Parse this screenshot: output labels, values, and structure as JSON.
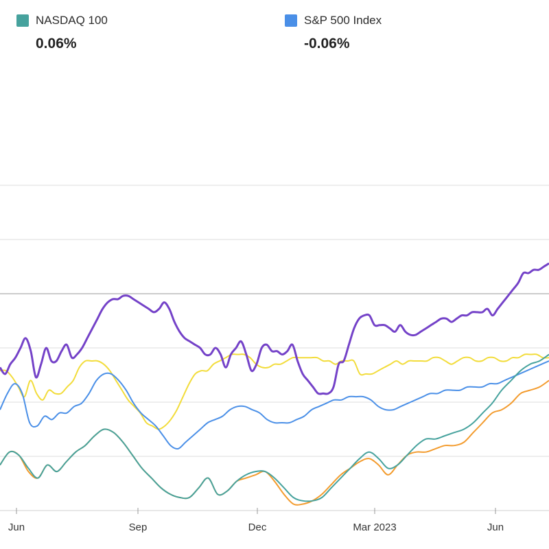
{
  "legend": [
    {
      "name": "NASDAQ 100",
      "value": "0.06%",
      "color": "#46a29d"
    },
    {
      "name": "S&P 500 Index",
      "value": "-0.06%",
      "color": "#4a8fe7"
    }
  ],
  "chart_data": {
    "type": "line",
    "title": "",
    "xlabel": "",
    "ylabel": "",
    "x_tick_labels": [
      "Jun",
      "Sep",
      "Dec",
      "Mar 2023",
      "Jun"
    ],
    "grid": true,
    "series": [
      {
        "color": "#7442c8",
        "values": [
          0.44,
          0.42,
          0.45,
          0.47,
          0.5,
          0.53,
          0.49,
          0.41,
          0.45,
          0.5,
          0.46,
          0.46,
          0.49,
          0.51,
          0.47,
          0.48,
          0.5,
          0.53,
          0.56,
          0.59,
          0.62,
          0.64,
          0.65,
          0.65,
          0.66,
          0.66,
          0.65,
          0.64,
          0.63,
          0.62,
          0.61,
          0.62,
          0.64,
          0.62,
          0.58,
          0.55,
          0.53,
          0.52,
          0.51,
          0.5,
          0.48,
          0.48,
          0.5,
          0.48,
          0.44,
          0.48,
          0.5,
          0.52,
          0.48,
          0.43,
          0.45,
          0.5,
          0.51,
          0.49,
          0.49,
          0.48,
          0.49,
          0.51,
          0.46,
          0.42,
          0.4,
          0.38,
          0.36,
          0.36,
          0.36,
          0.38,
          0.45,
          0.46,
          0.51,
          0.56,
          0.59,
          0.6,
          0.6,
          0.57,
          0.57,
          0.57,
          0.56,
          0.55,
          0.57,
          0.55,
          0.54,
          0.54,
          0.55,
          0.56,
          0.57,
          0.58,
          0.59,
          0.59,
          0.58,
          0.59,
          0.6,
          0.6,
          0.61,
          0.61,
          0.61,
          0.62,
          0.6,
          0.62,
          0.64,
          0.66,
          0.68,
          0.7,
          0.73,
          0.73,
          0.74,
          0.74,
          0.75,
          0.76
        ]
      },
      {
        "color": "#f2dc3a",
        "values": [
          0.43,
          0.43,
          0.41,
          0.38,
          0.35,
          0.4,
          0.36,
          0.34,
          0.37,
          0.36,
          0.36,
          0.38,
          0.4,
          0.44,
          0.46,
          0.46,
          0.46,
          0.45,
          0.43,
          0.4,
          0.37,
          0.34,
          0.32,
          0.3,
          0.27,
          0.26,
          0.25,
          0.26,
          0.28,
          0.31,
          0.35,
          0.39,
          0.42,
          0.43,
          0.43,
          0.45,
          0.46,
          0.47,
          0.48,
          0.48,
          0.48,
          0.47,
          0.45,
          0.44,
          0.44,
          0.45,
          0.45,
          0.46,
          0.47,
          0.47,
          0.47,
          0.47,
          0.47,
          0.46,
          0.46,
          0.45,
          0.46,
          0.46,
          0.46,
          0.42,
          0.42,
          0.42,
          0.43,
          0.44,
          0.45,
          0.46,
          0.45,
          0.46,
          0.46,
          0.46,
          0.46,
          0.47,
          0.47,
          0.46,
          0.45,
          0.46,
          0.47,
          0.47,
          0.46,
          0.46,
          0.47,
          0.47,
          0.46,
          0.46,
          0.47,
          0.47,
          0.48,
          0.48,
          0.48,
          0.47,
          0.47
        ]
      },
      {
        "color": "#4a8fe7",
        "values": [
          0.31,
          0.36,
          0.39,
          0.36,
          0.27,
          0.26,
          0.29,
          0.28,
          0.3,
          0.3,
          0.32,
          0.33,
          0.36,
          0.4,
          0.42,
          0.42,
          0.4,
          0.37,
          0.33,
          0.3,
          0.28,
          0.26,
          0.23,
          0.2,
          0.19,
          0.21,
          0.23,
          0.25,
          0.27,
          0.28,
          0.29,
          0.31,
          0.32,
          0.32,
          0.31,
          0.3,
          0.28,
          0.27,
          0.27,
          0.27,
          0.28,
          0.29,
          0.31,
          0.32,
          0.33,
          0.34,
          0.34,
          0.35,
          0.35,
          0.35,
          0.34,
          0.32,
          0.31,
          0.31,
          0.32,
          0.33,
          0.34,
          0.35,
          0.36,
          0.36,
          0.37,
          0.37,
          0.37,
          0.38,
          0.38,
          0.38,
          0.39,
          0.39,
          0.4,
          0.41,
          0.42,
          0.43,
          0.44,
          0.45,
          0.46
        ]
      },
      {
        "color": "#46a29d",
        "values": [
          0.14,
          0.18,
          0.17,
          0.13,
          0.1,
          0.14,
          0.12,
          0.15,
          0.18,
          0.2,
          0.23,
          0.25,
          0.24,
          0.21,
          0.17,
          0.13,
          0.1,
          0.07,
          0.05,
          0.04,
          0.04,
          0.07,
          0.1,
          0.05,
          0.06,
          0.09,
          0.11,
          0.12,
          0.12,
          0.1,
          0.07,
          0.04,
          0.03,
          0.03,
          0.04,
          0.07,
          0.1,
          0.13,
          0.16,
          0.18,
          0.16,
          0.13,
          0.14,
          0.17,
          0.2,
          0.22,
          0.22,
          0.23,
          0.24,
          0.25,
          0.27,
          0.3,
          0.33,
          0.37,
          0.4,
          0.43,
          0.45,
          0.46,
          0.48
        ]
      },
      {
        "color": "#f39b2d",
        "values": [
          0.14,
          0.18,
          0.17,
          0.12,
          0.1,
          0.14,
          0.12,
          0.15,
          0.18,
          0.2,
          0.23,
          0.25,
          0.24,
          0.21,
          0.17,
          0.13,
          0.1,
          0.07,
          0.05,
          0.04,
          0.04,
          0.07,
          0.1,
          0.05,
          0.06,
          0.09,
          0.1,
          0.11,
          0.12,
          0.09,
          0.05,
          0.02,
          0.02,
          0.03,
          0.05,
          0.08,
          0.11,
          0.13,
          0.15,
          0.16,
          0.14,
          0.11,
          0.14,
          0.17,
          0.18,
          0.18,
          0.19,
          0.2,
          0.2,
          0.21,
          0.24,
          0.27,
          0.3,
          0.31,
          0.33,
          0.36,
          0.37,
          0.38,
          0.4
        ]
      }
    ]
  }
}
